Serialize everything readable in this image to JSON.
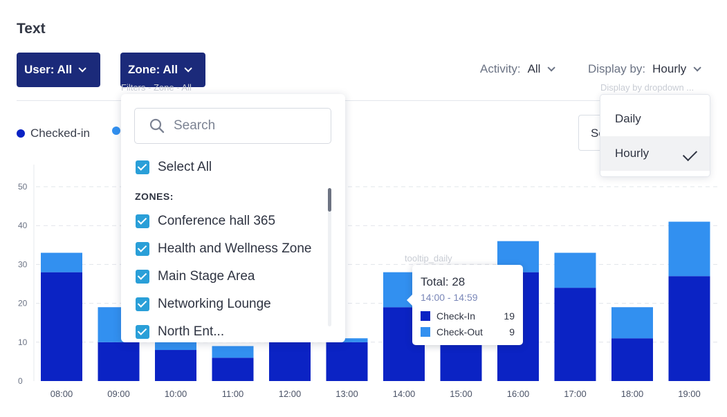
{
  "page": {
    "title": "Text"
  },
  "filters": {
    "user": {
      "label": "User: All"
    },
    "zone": {
      "label": "Zone: All",
      "caption": "Filters - Zone - All"
    },
    "activity": {
      "label": "Activity:",
      "value": "All"
    },
    "display_by": {
      "label": "Display by:",
      "value": "Hourly",
      "caption": "Display by dropdown ..."
    }
  },
  "legend": [
    {
      "label": "Checked-in",
      "color": "#0b23c4"
    },
    {
      "label": "",
      "color": "#3290f0"
    }
  ],
  "select_stub": {
    "text": "Se"
  },
  "zone_dropdown": {
    "search_placeholder": "Search",
    "select_all_label": "Select All",
    "zones_heading": "ZONES:",
    "zones": [
      "Conference hall 365",
      "Health and Wellness Zone",
      "Main Stage Area",
      "Networking Lounge",
      "North Ent..."
    ]
  },
  "display_dropdown": {
    "options": [
      "Daily",
      "Hourly"
    ],
    "selected": "Hourly"
  },
  "tooltip": {
    "caption": "tooltip_daily",
    "total": "Total: 28",
    "range": "14:00 - 14:59",
    "rows": [
      {
        "label": "Check-In",
        "value": "19",
        "color": "#0b23c4"
      },
      {
        "label": "Check-Out",
        "value": "9",
        "color": "#3290f0"
      }
    ]
  },
  "chart_data": {
    "type": "bar",
    "stacked": true,
    "categories": [
      "08:00",
      "09:00",
      "10:00",
      "11:00",
      "12:00",
      "13:00",
      "14:00",
      "15:00",
      "16:00",
      "17:00",
      "18:00",
      "19:00"
    ],
    "series": [
      {
        "name": "Check-In",
        "color": "#0b23c4",
        "values": [
          28,
          10,
          8,
          6,
          10,
          10,
          19,
          11,
          28,
          24,
          11,
          27
        ]
      },
      {
        "name": "Check-Out",
        "color": "#3290f0",
        "values": [
          5,
          9,
          2,
          3,
          0,
          1,
          9,
          2,
          8,
          9,
          8,
          14
        ]
      }
    ],
    "yticks": [
      0,
      10,
      20,
      30,
      40,
      50
    ],
    "ylim": [
      0,
      50
    ],
    "grid": true
  }
}
